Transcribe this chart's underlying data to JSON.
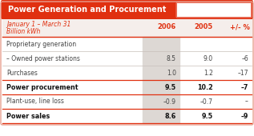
{
  "title": "Power Generation and Procurement",
  "subtitle_line1": "January 1 – March 31",
  "subtitle_line2": "Billion kWh",
  "col_headers": [
    "2006",
    "2005",
    "+/- %"
  ],
  "rows": [
    {
      "label": "Proprietary generation",
      "values": [
        "",
        "",
        ""
      ],
      "bold": false,
      "is_section": true
    },
    {
      "label": "– Owned power stations",
      "values": [
        "8.5",
        "9.0",
        "–6"
      ],
      "bold": false,
      "is_section": false
    },
    {
      "label": "Purchases",
      "values": [
        "1.0",
        "1.2",
        "–17"
      ],
      "bold": false,
      "is_section": false
    },
    {
      "label": "Power procurement",
      "values": [
        "9.5",
        "10.2",
        "–7"
      ],
      "bold": true,
      "is_section": false
    },
    {
      "label": "Plant-use, line loss",
      "values": [
        "–0.9",
        "–0.7",
        "–"
      ],
      "bold": false,
      "is_section": false
    },
    {
      "label": "Power sales",
      "values": [
        "8.6",
        "9.5",
        "–9"
      ],
      "bold": true,
      "is_section": false
    }
  ],
  "header_bg": "#e03010",
  "header_text": "#ffffff",
  "subheader_bg": "#f5eeeb",
  "subheader_text": "#e03010",
  "col_header_text": "#e03010",
  "body_bg": "#ffffff",
  "shaded_col_bg": "#ddd8d4",
  "separator_color": "#e03010",
  "thin_line_color": "#c8bfba",
  "body_text": "#444444",
  "bold_text": "#111111",
  "outer_border": "#e8a090"
}
